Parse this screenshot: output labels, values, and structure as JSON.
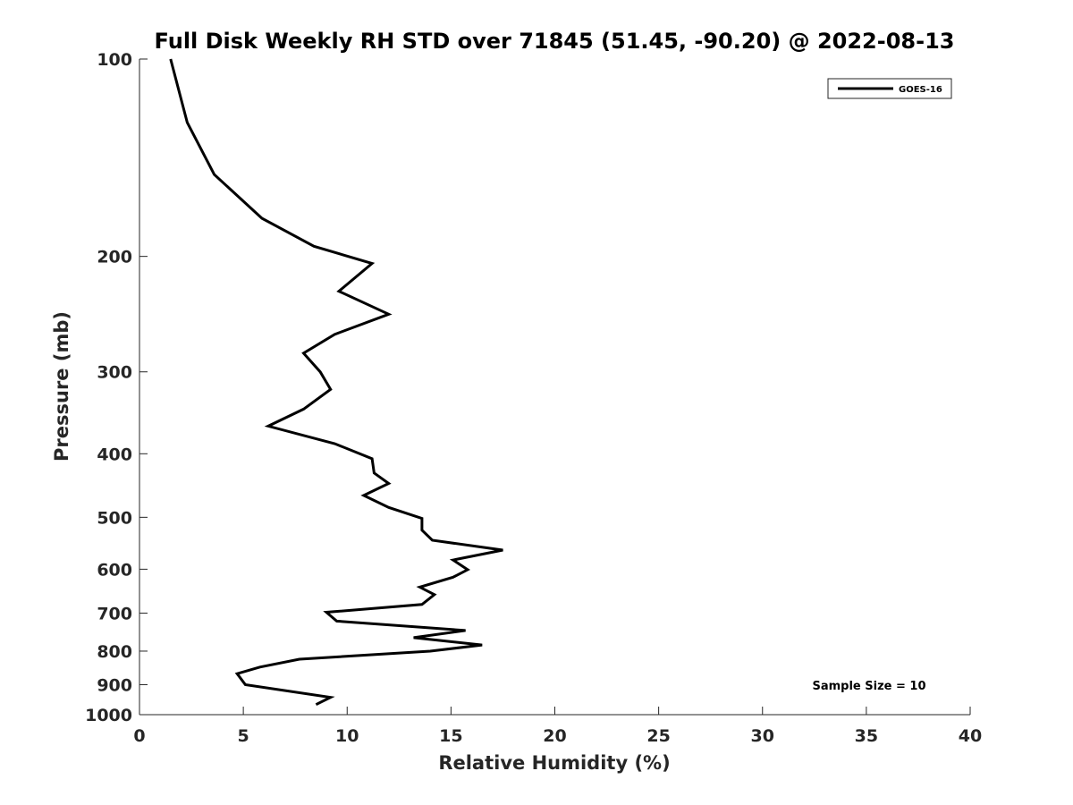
{
  "chart_data": {
    "type": "line",
    "title": "Full Disk Weekly RH STD over 71845 (51.45, -90.20) @ 2022-08-13",
    "xlabel": "Relative Humidity (%)",
    "ylabel": "Pressure (mb)",
    "xlim": [
      0,
      40
    ],
    "ylim": [
      100,
      1000
    ],
    "yscale": "log",
    "y_reversed": true,
    "grid": false,
    "legend_position": "top-right",
    "x_ticks": [
      "0",
      "5",
      "10",
      "15",
      "20",
      "25",
      "30",
      "35",
      "40"
    ],
    "y_ticks": [
      "100",
      "200",
      "300",
      "400",
      "500",
      "600",
      "700",
      "800",
      "900",
      "1000"
    ],
    "series": [
      {
        "name": "GOES-16",
        "color": "#000000",
        "points": [
          [
            1.5,
            100
          ],
          [
            2.3,
            125
          ],
          [
            3.6,
            150
          ],
          [
            5.9,
            175
          ],
          [
            8.4,
            193
          ],
          [
            11.2,
            205
          ],
          [
            9.6,
            226
          ],
          [
            12.0,
            245
          ],
          [
            9.4,
            263
          ],
          [
            7.9,
            281
          ],
          [
            8.7,
            300
          ],
          [
            9.2,
            319
          ],
          [
            7.9,
            342
          ],
          [
            6.2,
            363
          ],
          [
            9.4,
            386
          ],
          [
            11.2,
            407
          ],
          [
            11.3,
            428
          ],
          [
            12.0,
            444
          ],
          [
            10.8,
            463
          ],
          [
            12.0,
            483
          ],
          [
            13.6,
            502
          ],
          [
            13.6,
            523
          ],
          [
            14.1,
            542
          ],
          [
            17.5,
            561
          ],
          [
            15.1,
            581
          ],
          [
            15.8,
            601
          ],
          [
            15.1,
            617
          ],
          [
            13.5,
            639
          ],
          [
            14.2,
            656
          ],
          [
            13.6,
            679
          ],
          [
            9.0,
            698
          ],
          [
            9.5,
            720
          ],
          [
            15.7,
            744
          ],
          [
            13.2,
            763
          ],
          [
            16.5,
            783
          ],
          [
            14.0,
            800
          ],
          [
            7.7,
            823
          ],
          [
            5.8,
            846
          ],
          [
            4.7,
            866
          ],
          [
            5.1,
            900
          ],
          [
            9.2,
            941
          ],
          [
            8.5,
            965
          ]
        ]
      }
    ],
    "annotations": [
      "Sample Size = 10"
    ]
  }
}
